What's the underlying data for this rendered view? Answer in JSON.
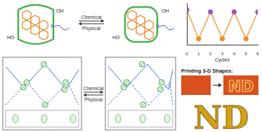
{
  "molecules": {
    "left_labels": [
      "OH",
      "HO",
      "N"
    ],
    "right_labels": [
      "OH",
      "HO",
      "N"
    ],
    "arrow_top": "Chemical",
    "arrow_bottom": "Physical"
  },
  "network": {
    "arrow_top": "Chemical",
    "arrow_bottom": "Physical"
  },
  "chart_data": {
    "type": "line",
    "x_label": "Cycles",
    "x": [
      0,
      1,
      2,
      3,
      4,
      5,
      6
    ],
    "values": [
      0.85,
      0.15,
      0.8,
      0.15,
      0.8,
      0.15,
      0.8
    ],
    "color": "#f28c28",
    "colors": [
      "#9b59b6",
      "#f28c28",
      "#9b59b6",
      "#f28c28",
      "#9b59b6",
      "#f28c28",
      "#9b59b6"
    ],
    "marker": "circle",
    "xlim": [
      0,
      6
    ],
    "xticks": [
      0,
      1,
      2,
      3,
      4,
      5,
      6
    ],
    "ylim": [
      0,
      1
    ],
    "tick_labels": "x",
    "grid": false
  },
  "printing": {
    "title": "Printing 3-D Shapes:",
    "letters": [
      "N",
      "D"
    ]
  }
}
